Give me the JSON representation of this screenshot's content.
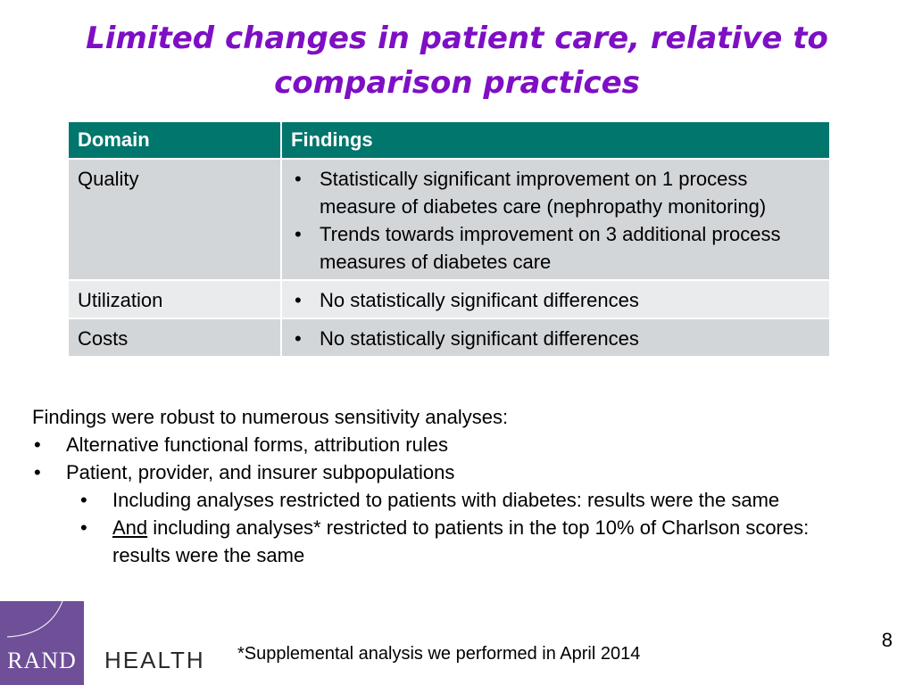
{
  "title": "Limited changes in patient care, relative to comparison practices",
  "table": {
    "headers": [
      "Domain",
      "Findings"
    ],
    "rows": [
      {
        "domain": "Quality",
        "findings": [
          "Statistically significant improvement on 1 process measure of diabetes care (nephropathy monitoring)",
          "Trends towards improvement on 3 additional process measures of diabetes care"
        ]
      },
      {
        "domain": "Utilization",
        "findings": [
          "No statistically significant differences"
        ]
      },
      {
        "domain": "Costs",
        "findings": [
          "No statistically significant differences"
        ]
      }
    ],
    "colors": {
      "header_bg": "#00766C",
      "row_dark": "#D3D6D9",
      "row_light": "#E9EBEC"
    }
  },
  "body": {
    "intro": "Findings were robust to numerous sensitivity analyses:",
    "bullets": [
      "Alternative functional forms, attribution rules",
      "Patient, provider, and insurer subpopulations"
    ],
    "sub_bullets": [
      "Including analyses restricted to patients with diabetes: results were the same",
      {
        "emphasis": "And",
        "rest": " including analyses* restricted to patients in the top 10% of Charlson scores: results were the same"
      }
    ]
  },
  "logo": {
    "brand": "RAND",
    "division": "HEALTH",
    "color": "#6E4F98"
  },
  "footnote": "*Supplemental analysis we performed in April 2014",
  "page_number": "8",
  "accent_color": "#7E0FC4"
}
